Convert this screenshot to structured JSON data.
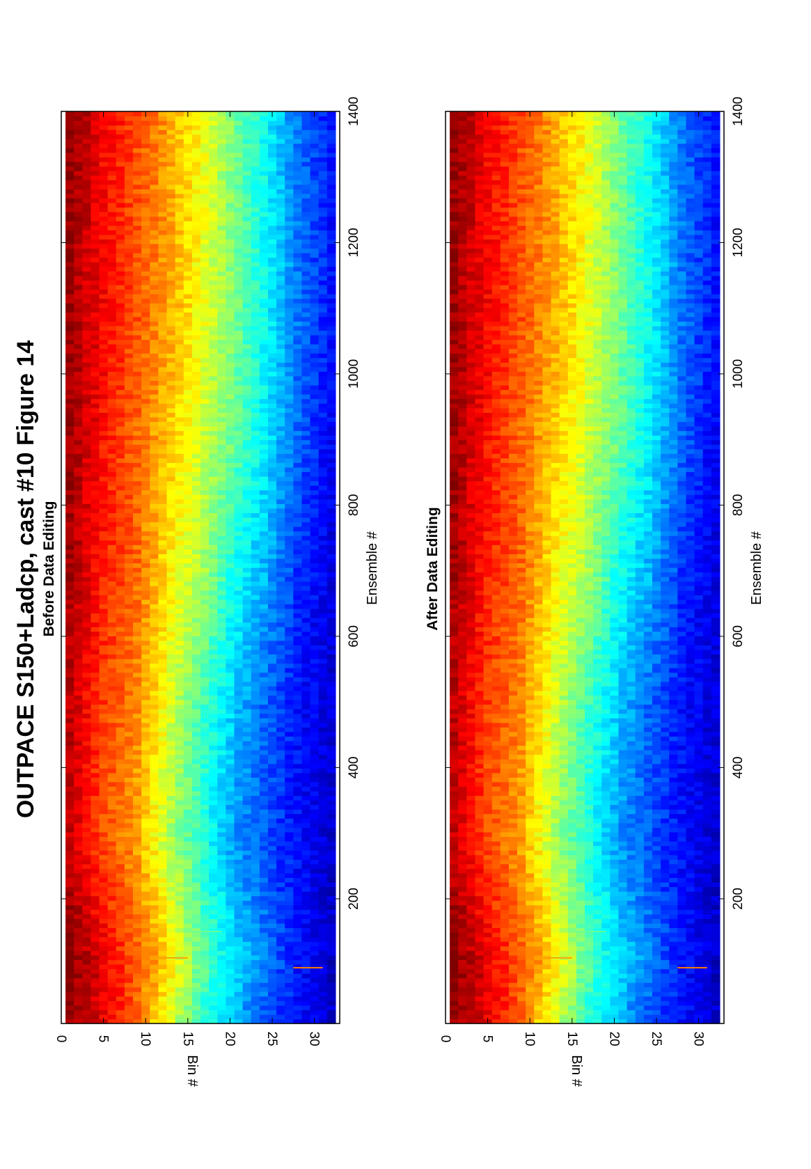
{
  "figure": {
    "title": "OUTPACE S150+Ladcp, cast #10  Figure 14"
  },
  "chart_data": [
    {
      "type": "heatmap",
      "title": "Before Data Editing",
      "xlabel": "Ensemble #",
      "ylabel": "Bin #",
      "xlim": [
        10,
        1400
      ],
      "ylim": [
        0,
        33
      ],
      "xticks": [
        "200",
        "400",
        "600",
        "800",
        "1000",
        "1200",
        "1400"
      ],
      "yticks": [
        "0",
        "5",
        "10",
        "15",
        "20",
        "25",
        "30"
      ],
      "colormap": "jet",
      "values_description_levels": [
        {
          "ensemble": 10,
          "bin_level": [
            0.98,
            0.9,
            0.78,
            0.6,
            0.42,
            0.3,
            0.2,
            0.13,
            0.08
          ]
        },
        {
          "ensemble": 100,
          "bin_level": [
            0.99,
            0.9,
            0.8,
            0.66,
            0.48,
            0.35,
            0.25,
            0.14,
            0.07
          ]
        },
        {
          "ensemble": 300,
          "bin_level": [
            0.93,
            0.8,
            0.72,
            0.55,
            0.42,
            0.28,
            0.2,
            0.13,
            0.08
          ]
        },
        {
          "ensemble": 500,
          "bin_level": [
            0.94,
            0.82,
            0.75,
            0.6,
            0.45,
            0.33,
            0.22,
            0.14,
            0.09
          ]
        },
        {
          "ensemble": 700,
          "bin_level": [
            0.96,
            0.85,
            0.78,
            0.65,
            0.55,
            0.4,
            0.3,
            0.17,
            0.1
          ]
        },
        {
          "ensemble": 900,
          "bin_level": [
            0.97,
            0.86,
            0.78,
            0.68,
            0.58,
            0.48,
            0.36,
            0.22,
            0.12
          ]
        },
        {
          "ensemble": 1100,
          "bin_level": [
            0.97,
            0.88,
            0.8,
            0.72,
            0.62,
            0.5,
            0.38,
            0.24,
            0.14
          ]
        },
        {
          "ensemble": 1300,
          "bin_level": [
            0.98,
            0.88,
            0.8,
            0.72,
            0.62,
            0.5,
            0.38,
            0.24,
            0.14
          ]
        },
        {
          "ensemble": 1400,
          "bin_level": [
            0.99,
            0.89,
            0.81,
            0.72,
            0.62,
            0.5,
            0.38,
            0.24,
            0.14
          ]
        }
      ]
    },
    {
      "type": "heatmap",
      "title": "After Data Editing",
      "xlabel": "Ensemble #",
      "ylabel": "Bin #",
      "xlim": [
        10,
        1400
      ],
      "ylim": [
        0,
        33
      ],
      "xticks": [
        "200",
        "400",
        "600",
        "800",
        "1000",
        "1200",
        "1400"
      ],
      "yticks": [
        "0",
        "5",
        "10",
        "15",
        "20",
        "25",
        "30"
      ],
      "colormap": "jet",
      "values_description_levels": [
        {
          "ensemble": 10,
          "bin_level": [
            0.98,
            0.9,
            0.78,
            0.6,
            0.42,
            0.3,
            0.2,
            0.13,
            0.08
          ]
        },
        {
          "ensemble": 100,
          "bin_level": [
            0.99,
            0.9,
            0.8,
            0.66,
            0.48,
            0.35,
            0.25,
            0.14,
            0.07
          ]
        },
        {
          "ensemble": 300,
          "bin_level": [
            0.93,
            0.8,
            0.72,
            0.55,
            0.42,
            0.28,
            0.2,
            0.13,
            0.08
          ]
        },
        {
          "ensemble": 500,
          "bin_level": [
            0.94,
            0.82,
            0.75,
            0.6,
            0.45,
            0.33,
            0.22,
            0.14,
            0.09
          ]
        },
        {
          "ensemble": 700,
          "bin_level": [
            0.96,
            0.85,
            0.78,
            0.65,
            0.55,
            0.4,
            0.3,
            0.17,
            0.1
          ]
        },
        {
          "ensemble": 900,
          "bin_level": [
            0.97,
            0.86,
            0.78,
            0.68,
            0.58,
            0.48,
            0.36,
            0.22,
            0.12
          ]
        },
        {
          "ensemble": 1100,
          "bin_level": [
            0.97,
            0.88,
            0.8,
            0.72,
            0.62,
            0.5,
            0.38,
            0.24,
            0.14
          ]
        },
        {
          "ensemble": 1300,
          "bin_level": [
            0.98,
            0.88,
            0.8,
            0.72,
            0.62,
            0.5,
            0.38,
            0.24,
            0.14
          ]
        },
        {
          "ensemble": 1400,
          "bin_level": [
            0.99,
            0.89,
            0.81,
            0.72,
            0.62,
            0.5,
            0.38,
            0.24,
            0.14
          ]
        }
      ]
    }
  ]
}
